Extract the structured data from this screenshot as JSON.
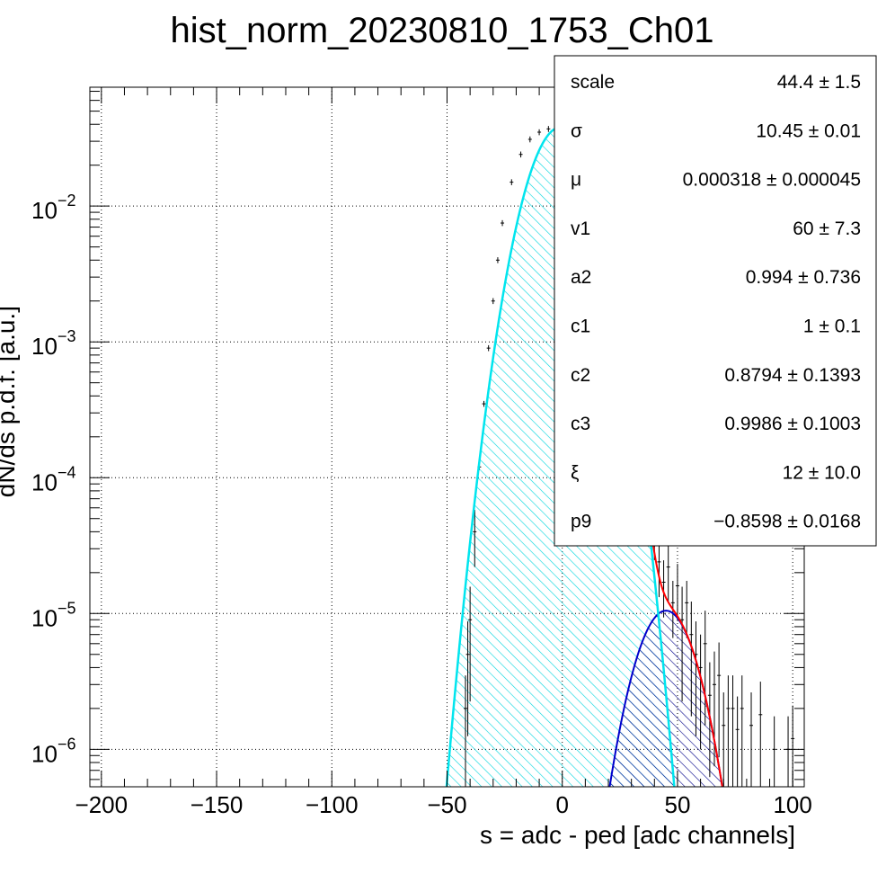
{
  "chart_data": {
    "type": "histogram-fit",
    "title": "hist_norm_20230810_1753_Ch01",
    "xlabel": "s = adc - ped [adc channels]",
    "ylabel": "dN/ds p.d.f. [a.u.]",
    "xlim": [
      -205,
      105
    ],
    "ylim": [
      5.3e-07,
      0.075
    ],
    "y_scale": "log",
    "grid": true,
    "x_ticks": [
      -200,
      -150,
      -100,
      -50,
      0,
      50,
      100
    ],
    "x_tick_labels": [
      "−200",
      "−150",
      "−100",
      "−50",
      "0",
      "50",
      "100"
    ],
    "y_ticks": [
      1e-06,
      1e-05,
      0.0001,
      0.001,
      0.01
    ],
    "y_tick_labels": [
      {
        "base": "10",
        "exp": "−6"
      },
      {
        "base": "10",
        "exp": "−5"
      },
      {
        "base": "10",
        "exp": "−4"
      },
      {
        "base": "10",
        "exp": "−3"
      },
      {
        "base": "10",
        "exp": "−2"
      }
    ],
    "series": [
      {
        "role": "pedestal gaussian (cyan, hatched)",
        "mu": -0.8,
        "sigma": 10.45,
        "peak": 0.038,
        "color": "#00e5ee"
      },
      {
        "role": "signal gaussian (blue, hatched)",
        "mu": 45,
        "sigma": 10.0,
        "peak": 1.05e-05,
        "color": "#0000cc"
      },
      {
        "role": "total fit (red)",
        "color": "#ff0000"
      }
    ],
    "histogram_points": [
      [
        -42,
        2e-06
      ],
      [
        -41,
        5e-06
      ],
      [
        -40,
        9e-06
      ],
      [
        -38,
        4e-05
      ],
      [
        -36,
        0.00012
      ],
      [
        -34,
        0.00035
      ],
      [
        -32,
        0.0009
      ],
      [
        -30,
        0.002
      ],
      [
        -28,
        0.004
      ],
      [
        -26,
        0.0075
      ],
      [
        -22,
        0.015
      ],
      [
        -18,
        0.024
      ],
      [
        -14,
        0.031
      ],
      [
        -10,
        0.035
      ],
      [
        -6,
        0.037
      ],
      [
        -2,
        0.0378
      ],
      [
        2,
        0.037
      ],
      [
        6,
        0.035
      ],
      [
        10,
        0.031
      ],
      [
        14,
        0.025
      ],
      [
        18,
        0.017
      ],
      [
        22,
        0.0105
      ],
      [
        26,
        0.0052
      ],
      [
        30,
        0.0021
      ],
      [
        34,
        0.0006
      ],
      [
        36,
        0.00026
      ],
      [
        38,
        0.00011
      ],
      [
        40,
        4.5e-05
      ],
      [
        42,
        2.4e-05
      ],
      [
        44,
        1.7e-05
      ],
      [
        46,
        2.2e-05
      ],
      [
        48,
        1.2e-05
      ],
      [
        50,
        1.6e-05
      ],
      [
        52,
        9e-06
      ],
      [
        54,
        1.2e-05
      ],
      [
        56,
        7e-06
      ],
      [
        58,
        5e-06
      ],
      [
        60,
        4e-06
      ],
      [
        62,
        6e-06
      ],
      [
        64,
        2.5e-06
      ],
      [
        66,
        3e-06
      ],
      [
        68,
        3.5e-06
      ],
      [
        70,
        1.5e-06
      ],
      [
        72,
        2e-06
      ],
      [
        74,
        2e-06
      ],
      [
        76,
        1.4e-06
      ],
      [
        78,
        2e-06
      ],
      [
        82,
        1.5e-06
      ],
      [
        86,
        1.8e-06
      ],
      [
        92,
        1e-06
      ],
      [
        98,
        1e-06
      ],
      [
        100,
        1.2e-06
      ]
    ]
  },
  "stats_box": {
    "rows": [
      {
        "name": "scale",
        "value": "44.4 ± 1.5"
      },
      {
        "name": "σ",
        "value": "10.45 ± 0.01"
      },
      {
        "name": "μ",
        "value": "0.000318 ± 0.000045"
      },
      {
        "name": "v1",
        "value": "60 ± 7.3"
      },
      {
        "name": "a2",
        "value": "0.994 ± 0.736"
      },
      {
        "name": "c1",
        "value": "1 ± 0.1"
      },
      {
        "name": "c2",
        "value": "0.8794 ± 0.1393"
      },
      {
        "name": "c3",
        "value": "0.9986 ± 0.1003"
      },
      {
        "name": "ξ",
        "value": "12 ± 10.0"
      },
      {
        "name": "p9",
        "value": "−0.8598 ± 0.0168"
      }
    ]
  }
}
